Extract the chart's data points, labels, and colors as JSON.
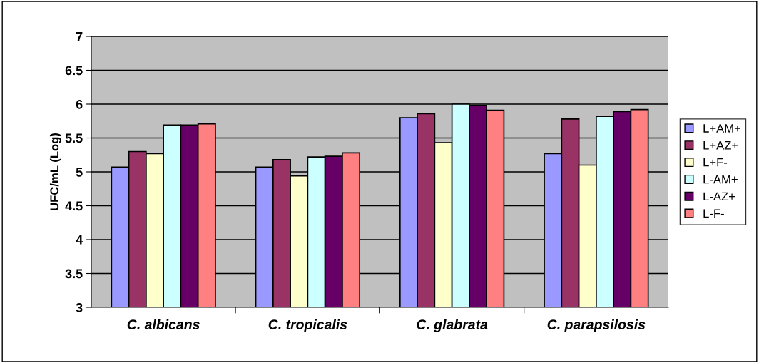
{
  "chart_data": {
    "type": "bar",
    "ylabel": "UFC/mL (Log)",
    "categories": [
      "C. albicans",
      "C. tropicalis",
      "C. glabrata",
      "C. parapsilosis"
    ],
    "series": [
      {
        "name": "L+AM+",
        "color": "#9999ff",
        "values": [
          5.07,
          5.07,
          5.8,
          5.27
        ]
      },
      {
        "name": "L+AZ+",
        "color": "#993366",
        "values": [
          5.3,
          5.18,
          5.86,
          5.78
        ]
      },
      {
        "name": "L+F-",
        "color": "#ffffcc",
        "values": [
          5.27,
          4.94,
          5.43,
          5.1
        ]
      },
      {
        "name": "L-AM+",
        "color": "#ccffff",
        "values": [
          5.69,
          5.22,
          6.0,
          5.82
        ]
      },
      {
        "name": "L-AZ+",
        "color": "#660066",
        "values": [
          5.69,
          5.23,
          5.98,
          5.89
        ]
      },
      {
        "name": "L-F-",
        "color": "#ff8080",
        "values": [
          5.71,
          5.28,
          5.91,
          5.92
        ]
      }
    ],
    "ylim": [
      3,
      7
    ],
    "yticks": [
      3,
      3.5,
      4,
      4.5,
      5,
      5.5,
      6,
      6.5,
      7
    ],
    "grid": "y",
    "legend": "right"
  }
}
